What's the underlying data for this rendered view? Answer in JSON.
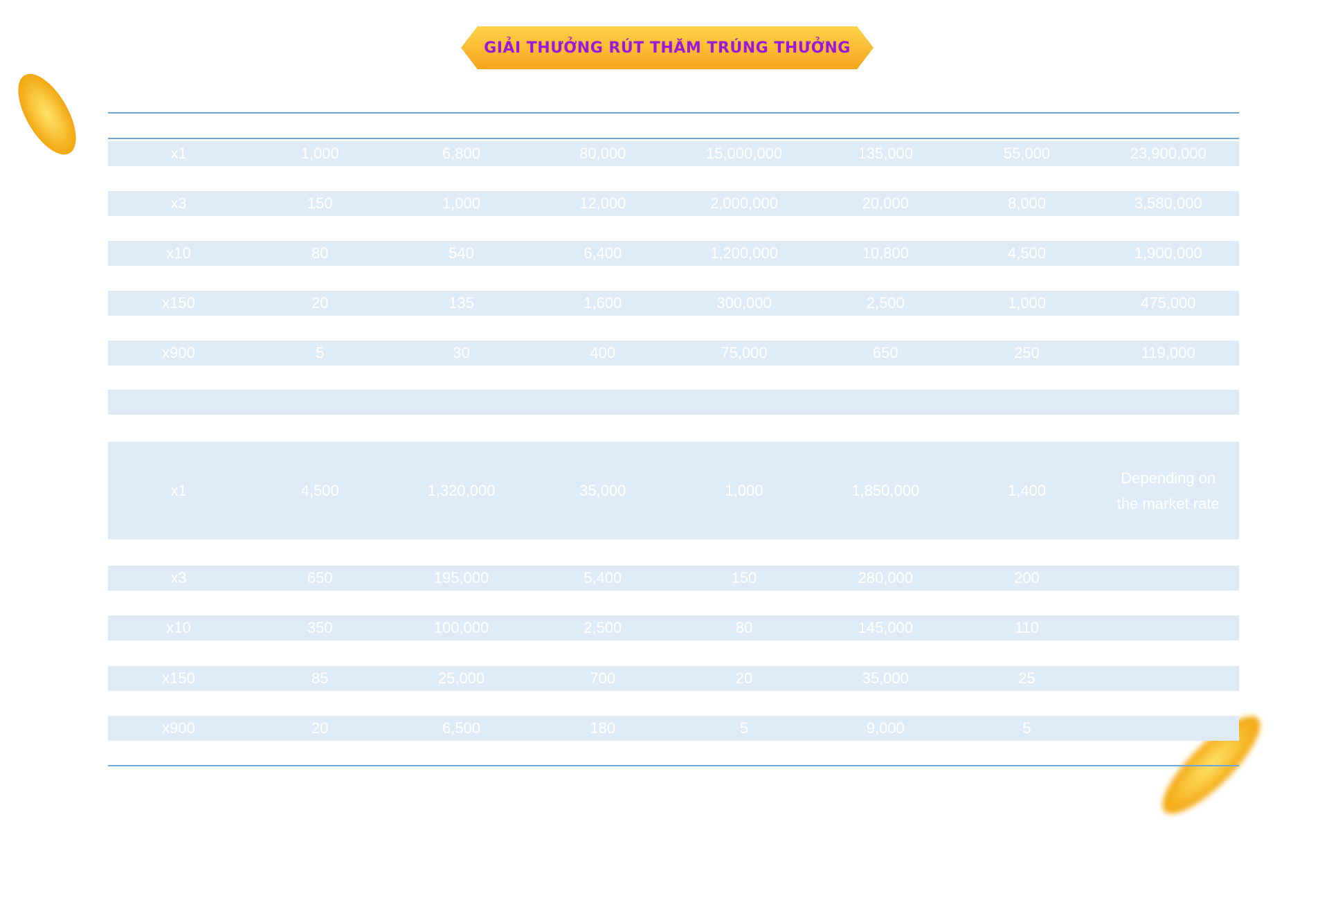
{
  "title": "GIẢI THƯỞNG RÚT THĂM TRÚNG THƯỞNG",
  "table": {
    "rows": [
      [
        "x1",
        "1,000",
        "6,800",
        "80,000",
        "15,000,000",
        "135,000",
        "55,000",
        "23,900,000"
      ],
      [
        "x3",
        "150",
        "1,000",
        "12,000",
        "2,000,000",
        "20,000",
        "8,000",
        "3,580,000"
      ],
      [
        "x10",
        "80",
        "540",
        "6,400",
        "1,200,000",
        "10,800",
        "4,500",
        "1,900,000"
      ],
      [
        "x150",
        "20",
        "135",
        "1,600",
        "300,000",
        "2,500",
        "1,000",
        "475,000"
      ],
      [
        "x900",
        "5",
        "30",
        "400",
        "75,000",
        "650",
        "250",
        "119,000"
      ],
      [
        "x1",
        "4,500",
        "1,320,000",
        "35,000",
        "1,000",
        "1,850,000",
        "1,400",
        "Depending on the market rate"
      ],
      [
        "x3",
        "650",
        "195,000",
        "5,400",
        "150",
        "280,000",
        "200"
      ],
      [
        "x10",
        "350",
        "100,000",
        "2,500",
        "80",
        "145,000",
        "110"
      ],
      [
        "x150",
        "85",
        "25,000",
        "700",
        "20",
        "35,000",
        "25"
      ],
      [
        "x900",
        "20",
        "6,500",
        "180",
        "5",
        "9,000",
        "5"
      ]
    ]
  }
}
